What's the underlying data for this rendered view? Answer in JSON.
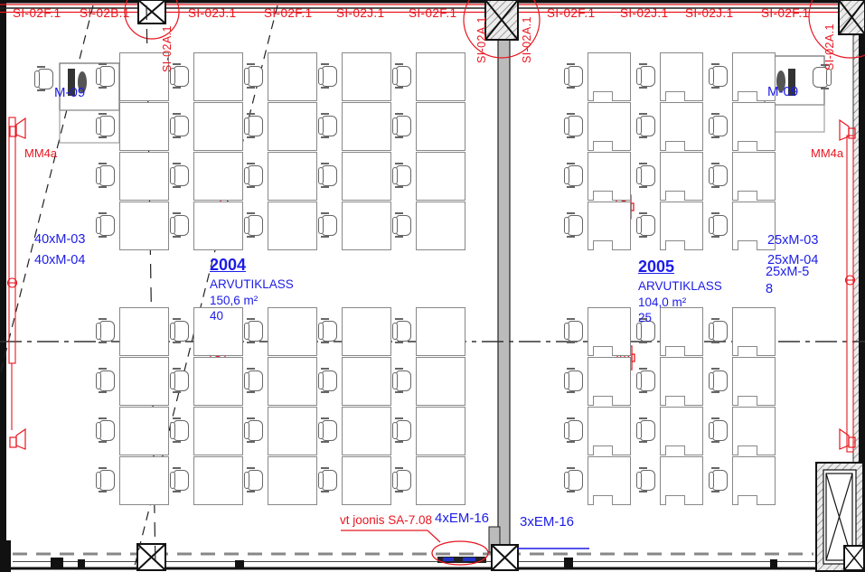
{
  "annotations": {
    "top_run_labels": [
      "SI-02F.1",
      "SI-02B.1",
      "SI-02J.1",
      "SI-02F.1",
      "SI-02J.1",
      "SI-02F.1",
      "SI-02F.1",
      "SI-02J.1",
      "SI-02J.1",
      "SI-02F.1"
    ],
    "riser_labels": [
      "SI-02A.1",
      "SI-02A.1",
      "SI-02A.1",
      "SI-02A.1"
    ],
    "wall_device_left": "MM4a",
    "wall_device_right": "MM4a",
    "ref_note": "vt joonis SA-7.08",
    "em_label_left": "4xEM-16",
    "em_label_right": "3xEM-16"
  },
  "rooms": [
    {
      "number": "2004",
      "name": "ARVUTIKLASS",
      "area": "150,6 m²",
      "capacity": "40",
      "teacher_station": "M-09",
      "equipment_lines": [
        "40xM-03",
        "40xM-04"
      ]
    },
    {
      "number": "2005",
      "name": "ARVUTIKLASS",
      "area": "104,0 m²",
      "capacity": "25",
      "teacher_station": "M-09",
      "equipment_lines": [
        "25xM-03",
        "25xM-04",
        "25xM-5",
        "8"
      ]
    }
  ],
  "colors": {
    "annotation_red": "#e81620",
    "annotation_blue": "#1c1ce8"
  }
}
